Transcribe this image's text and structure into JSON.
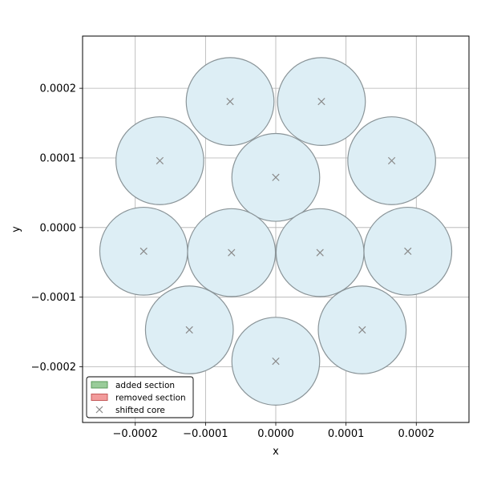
{
  "chart_data": {
    "type": "scatter",
    "title": "",
    "xlabel": "x",
    "ylabel": "y",
    "xlim": [
      -0.000275,
      0.000275
    ],
    "ylim": [
      -0.00028,
      0.000275
    ],
    "grid": true,
    "x_ticks": [
      {
        "value": -0.0002,
        "label": "−0.0002"
      },
      {
        "value": -0.0001,
        "label": "−0.0001"
      },
      {
        "value": 0.0,
        "label": "0.0000"
      },
      {
        "value": 0.0001,
        "label": "0.0001"
      },
      {
        "value": 0.0002,
        "label": "0.0002"
      }
    ],
    "y_ticks": [
      {
        "value": 0.0002,
        "label": "0.0002"
      },
      {
        "value": 0.0001,
        "label": "0.0001"
      },
      {
        "value": 0.0,
        "label": "0.0000"
      },
      {
        "value": -0.0001,
        "label": "−0.0001"
      },
      {
        "value": -0.0002,
        "label": "−0.0002"
      }
    ],
    "circle_radius": 6.25e-05,
    "circle_fill": "#ddeef5",
    "circle_stroke": "#8a9498",
    "marker_color": "#8a8a8a",
    "cores": [
      {
        "x": -6.5e-05,
        "y": 0.000181
      },
      {
        "x": 6.5e-05,
        "y": 0.000181
      },
      {
        "x": -0.000165,
        "y": 9.6e-05
      },
      {
        "x": 0.000165,
        "y": 9.6e-05
      },
      {
        "x": 0.0,
        "y": 7.2e-05
      },
      {
        "x": -0.000188,
        "y": -3.4e-05
      },
      {
        "x": -6.3e-05,
        "y": -3.6e-05
      },
      {
        "x": 6.3e-05,
        "y": -3.6e-05
      },
      {
        "x": 0.000188,
        "y": -3.4e-05
      },
      {
        "x": -0.000123,
        "y": -0.000147
      },
      {
        "x": 0.000123,
        "y": -0.000147
      },
      {
        "x": 0.0,
        "y": -0.000192
      }
    ],
    "legend": {
      "placement": "lower-left",
      "entries": [
        {
          "label": "added section",
          "kind": "patch",
          "color": "#99cc99",
          "edge": "#5a9a5a"
        },
        {
          "label": "removed section",
          "kind": "patch",
          "color": "#f29b9b",
          "edge": "#c45a5a"
        },
        {
          "label": "shifted core",
          "kind": "marker",
          "color": "#8a8a8a"
        }
      ]
    }
  }
}
